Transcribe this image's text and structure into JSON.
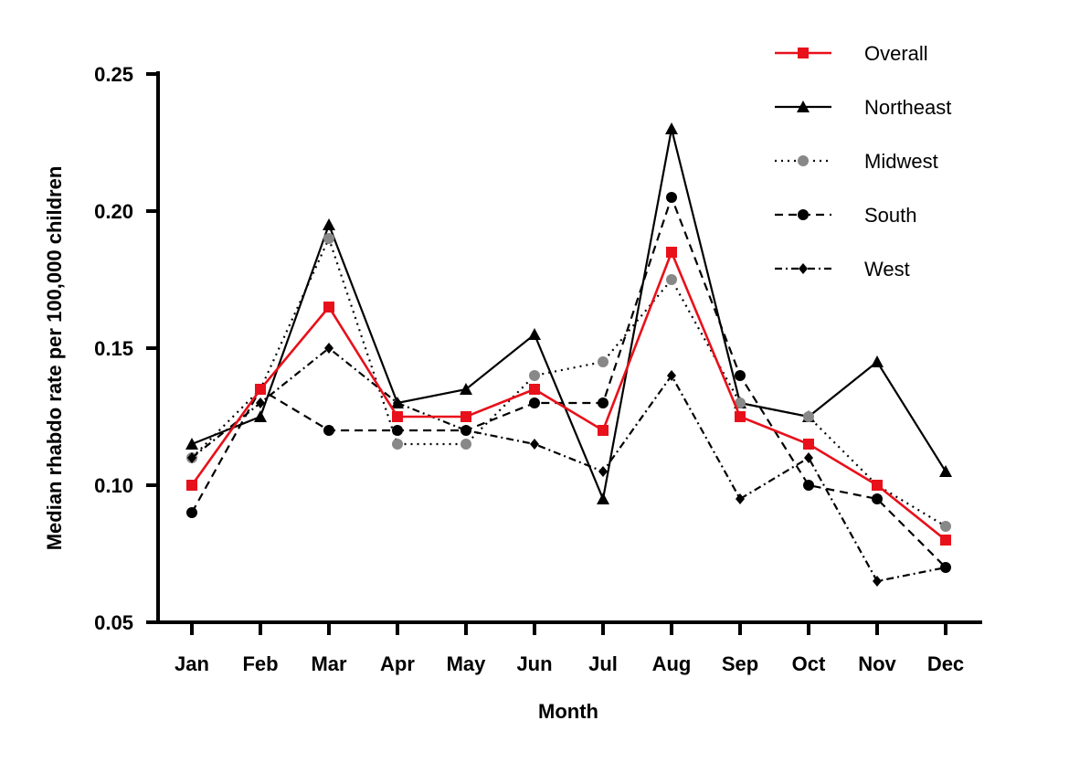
{
  "chart_data": {
    "type": "line",
    "xlabel": "Month",
    "ylabel": "Median rhabdo rate per 100,000 children",
    "categories": [
      "Jan",
      "Feb",
      "Mar",
      "Apr",
      "May",
      "Jun",
      "Jul",
      "Aug",
      "Sep",
      "Oct",
      "Nov",
      "Dec"
    ],
    "ylim": [
      0.05,
      0.25
    ],
    "yticks": [
      "0.05",
      "0.10",
      "0.15",
      "0.20",
      "0.25"
    ],
    "grid": false,
    "legend_position": "top-right",
    "series": [
      {
        "name": "Overall",
        "color": "#e8101a",
        "dash": "solid",
        "marker": "square",
        "values": [
          0.1,
          0.135,
          0.165,
          0.125,
          0.125,
          0.135,
          0.12,
          0.185,
          0.125,
          0.115,
          0.1,
          0.08
        ]
      },
      {
        "name": "Northeast",
        "color": "#000000",
        "dash": "solid",
        "marker": "triangle",
        "values": [
          0.115,
          0.125,
          0.195,
          0.13,
          0.135,
          0.155,
          0.095,
          0.23,
          0.13,
          0.125,
          0.145,
          0.105
        ]
      },
      {
        "name": "Midwest",
        "color": "#000000",
        "marker_color": "#888888",
        "dash": "dotted",
        "marker": "circle",
        "values": [
          0.11,
          0.135,
          0.19,
          0.115,
          0.115,
          0.14,
          0.145,
          0.175,
          0.13,
          0.125,
          0.1,
          0.085
        ]
      },
      {
        "name": "South",
        "color": "#000000",
        "dash": "dashed",
        "marker": "circle",
        "values": [
          0.09,
          0.135,
          0.12,
          0.12,
          0.12,
          0.13,
          0.13,
          0.205,
          0.14,
          0.1,
          0.095,
          0.07
        ]
      },
      {
        "name": "West",
        "color": "#000000",
        "dash": "dashdot",
        "marker": "diamond",
        "values": [
          0.11,
          0.13,
          0.15,
          0.13,
          0.12,
          0.115,
          0.105,
          0.14,
          0.095,
          0.11,
          0.065,
          0.07
        ]
      }
    ]
  }
}
